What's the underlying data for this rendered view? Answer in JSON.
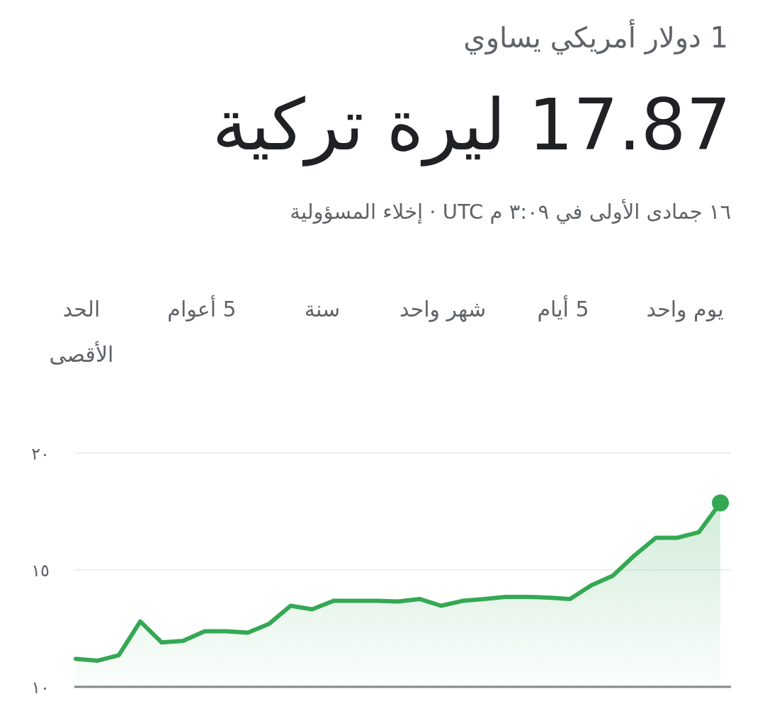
{
  "chart_data": {
    "type": "area",
    "subtitle": "1 دولار أمريكي يساوي",
    "title": "17.87 ليرة تركية",
    "annotations": [
      "١٦ جمادى الأولى في ٣:٠٩ م UTC · إخلاء المسؤولية",
      "يوم واحد",
      "5 أيام",
      "شهر واحد",
      "سنة",
      "5 أعوام",
      "الحد الأقصى"
    ],
    "categories": [
      null,
      null,
      null,
      null,
      null,
      null,
      null,
      null,
      null,
      null,
      null,
      null,
      null,
      null,
      null,
      null,
      null,
      null,
      null,
      null,
      null,
      null,
      null,
      null,
      null,
      null,
      null,
      null,
      null,
      null,
      null
    ],
    "series": [
      {
        "color": "#34a853",
        "values": [
          11.2,
          11.12,
          11.35,
          12.8,
          11.9,
          11.97,
          12.38,
          12.38,
          12.32,
          12.7,
          13.47,
          13.32,
          13.68,
          13.68,
          13.68,
          13.65,
          13.76,
          13.47,
          13.68,
          13.76,
          13.85,
          13.85,
          13.82,
          13.76,
          14.35,
          14.76,
          15.62,
          16.38,
          16.38,
          16.62,
          17.87
        ]
      },
      {
        "type": "scatter",
        "marker": "circle",
        "color": "#34a853",
        "values": [
          null,
          null,
          null,
          null,
          null,
          null,
          null,
          null,
          null,
          null,
          null,
          null,
          null,
          null,
          null,
          null,
          null,
          null,
          null,
          null,
          null,
          null,
          null,
          null,
          null,
          null,
          null,
          null,
          null,
          null,
          17.87
        ]
      }
    ],
    "ylim": [
      10,
      20
    ],
    "yticks": [
      {
        "value": 10,
        "label": "١٠"
      },
      {
        "value": 15,
        "label": "١٥"
      },
      {
        "value": 20,
        "label": "٢٠"
      }
    ],
    "grid": "y"
  }
}
